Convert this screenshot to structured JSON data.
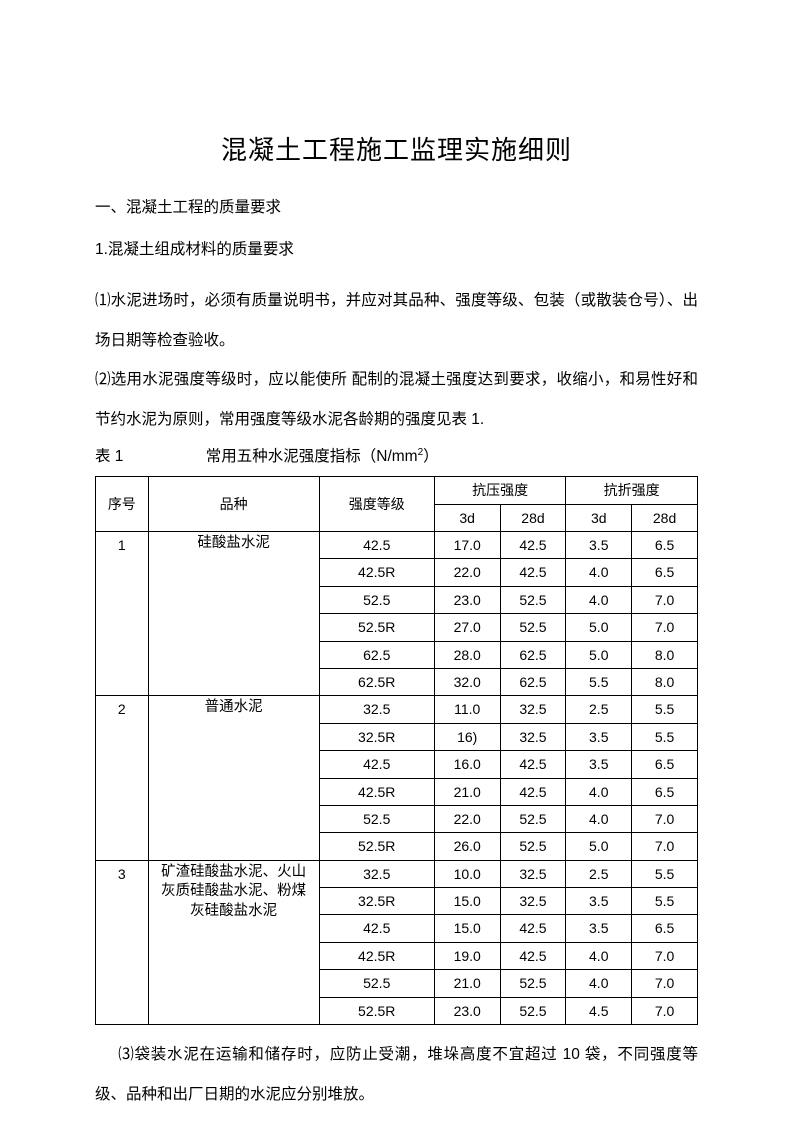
{
  "title": "混凝土工程施工监理实施细则",
  "section1": "一、混凝土工程的质量要求",
  "subsection1": "1.混凝土组成材料的质量要求",
  "para1": "⑴水泥进场时，必须有质量说明书，并应对其品种、强度等级、包装（或散装仓号）、出场日期等检查验收。",
  "para2": "⑵选用水泥强度等级时，应以能使所 配制的混凝土强度达到要求，收缩小，和易性好和节约水泥为原则，常用强度等级水泥各龄期的强度见表 1.",
  "tableCaption": {
    "label": "表 1",
    "title": "常用五种水泥强度指标（N/mm",
    "titleTail": "）"
  },
  "headers": {
    "seq": "序号",
    "variety": "品种",
    "grade": "强度等级",
    "compressive": "抗压强度",
    "flexural": "抗折强度",
    "d3": "3d",
    "d28": "28d"
  },
  "groups": [
    {
      "seq": "1",
      "variety": "硅酸盐水泥",
      "rows": [
        {
          "grade": "42.5",
          "c3": "17.0",
          "c28": "42.5",
          "f3": "3.5",
          "f28": "6.5"
        },
        {
          "grade": "42.5R",
          "c3": "22.0",
          "c28": "42.5",
          "f3": "4.0",
          "f28": "6.5"
        },
        {
          "grade": "52.5",
          "c3": "23.0",
          "c28": "52.5",
          "f3": "4.0",
          "f28": "7.0"
        },
        {
          "grade": "52.5R",
          "c3": "27.0",
          "c28": "52.5",
          "f3": "5.0",
          "f28": "7.0"
        },
        {
          "grade": "62.5",
          "c3": "28.0",
          "c28": "62.5",
          "f3": "5.0",
          "f28": "8.0"
        },
        {
          "grade": "62.5R",
          "c3": "32.0",
          "c28": "62.5",
          "f3": "5.5",
          "f28": "8.0"
        }
      ]
    },
    {
      "seq": "2",
      "variety": "普通水泥",
      "rows": [
        {
          "grade": "32.5",
          "c3": "11.0",
          "c28": "32.5",
          "f3": "2.5",
          "f28": "5.5"
        },
        {
          "grade": "32.5R",
          "c3": "16)",
          "c28": "32.5",
          "f3": "3.5",
          "f28": "5.5"
        },
        {
          "grade": "42.5",
          "c3": "16.0",
          "c28": "42.5",
          "f3": "3.5",
          "f28": "6.5"
        },
        {
          "grade": "42.5R",
          "c3": "21.0",
          "c28": "42.5",
          "f3": "4.0",
          "f28": "6.5"
        },
        {
          "grade": "52.5",
          "c3": "22.0",
          "c28": "52.5",
          "f3": "4.0",
          "f28": "7.0"
        },
        {
          "grade": "52.5R",
          "c3": "26.0",
          "c28": "52.5",
          "f3": "5.0",
          "f28": "7.0"
        }
      ]
    },
    {
      "seq": "3",
      "variety": "矿渣硅酸盐水泥、火山灰质硅酸盐水泥、粉煤灰硅酸盐水泥",
      "rows": [
        {
          "grade": "32.5",
          "c3": "10.0",
          "c28": "32.5",
          "f3": "2.5",
          "f28": "5.5"
        },
        {
          "grade": "32.5R",
          "c3": "15.0",
          "c28": "32.5",
          "f3": "3.5",
          "f28": "5.5"
        },
        {
          "grade": "42.5",
          "c3": "15.0",
          "c28": "42.5",
          "f3": "3.5",
          "f28": "6.5"
        },
        {
          "grade": "42.5R",
          "c3": "19.0",
          "c28": "42.5",
          "f3": "4.0",
          "f28": "7.0"
        },
        {
          "grade": "52.5",
          "c3": "21.0",
          "c28": "52.5",
          "f3": "4.0",
          "f28": "7.0"
        },
        {
          "grade": "52.5R",
          "c3": "23.0",
          "c28": "52.5",
          "f3": "4.5",
          "f28": "7.0"
        }
      ]
    }
  ],
  "para3": "⑶袋装水泥在运输和储存时，应防止受潮，堆垛高度不宜超过 10 袋，不同强度等级、品种和出厂日期的水泥应分别堆放。"
}
